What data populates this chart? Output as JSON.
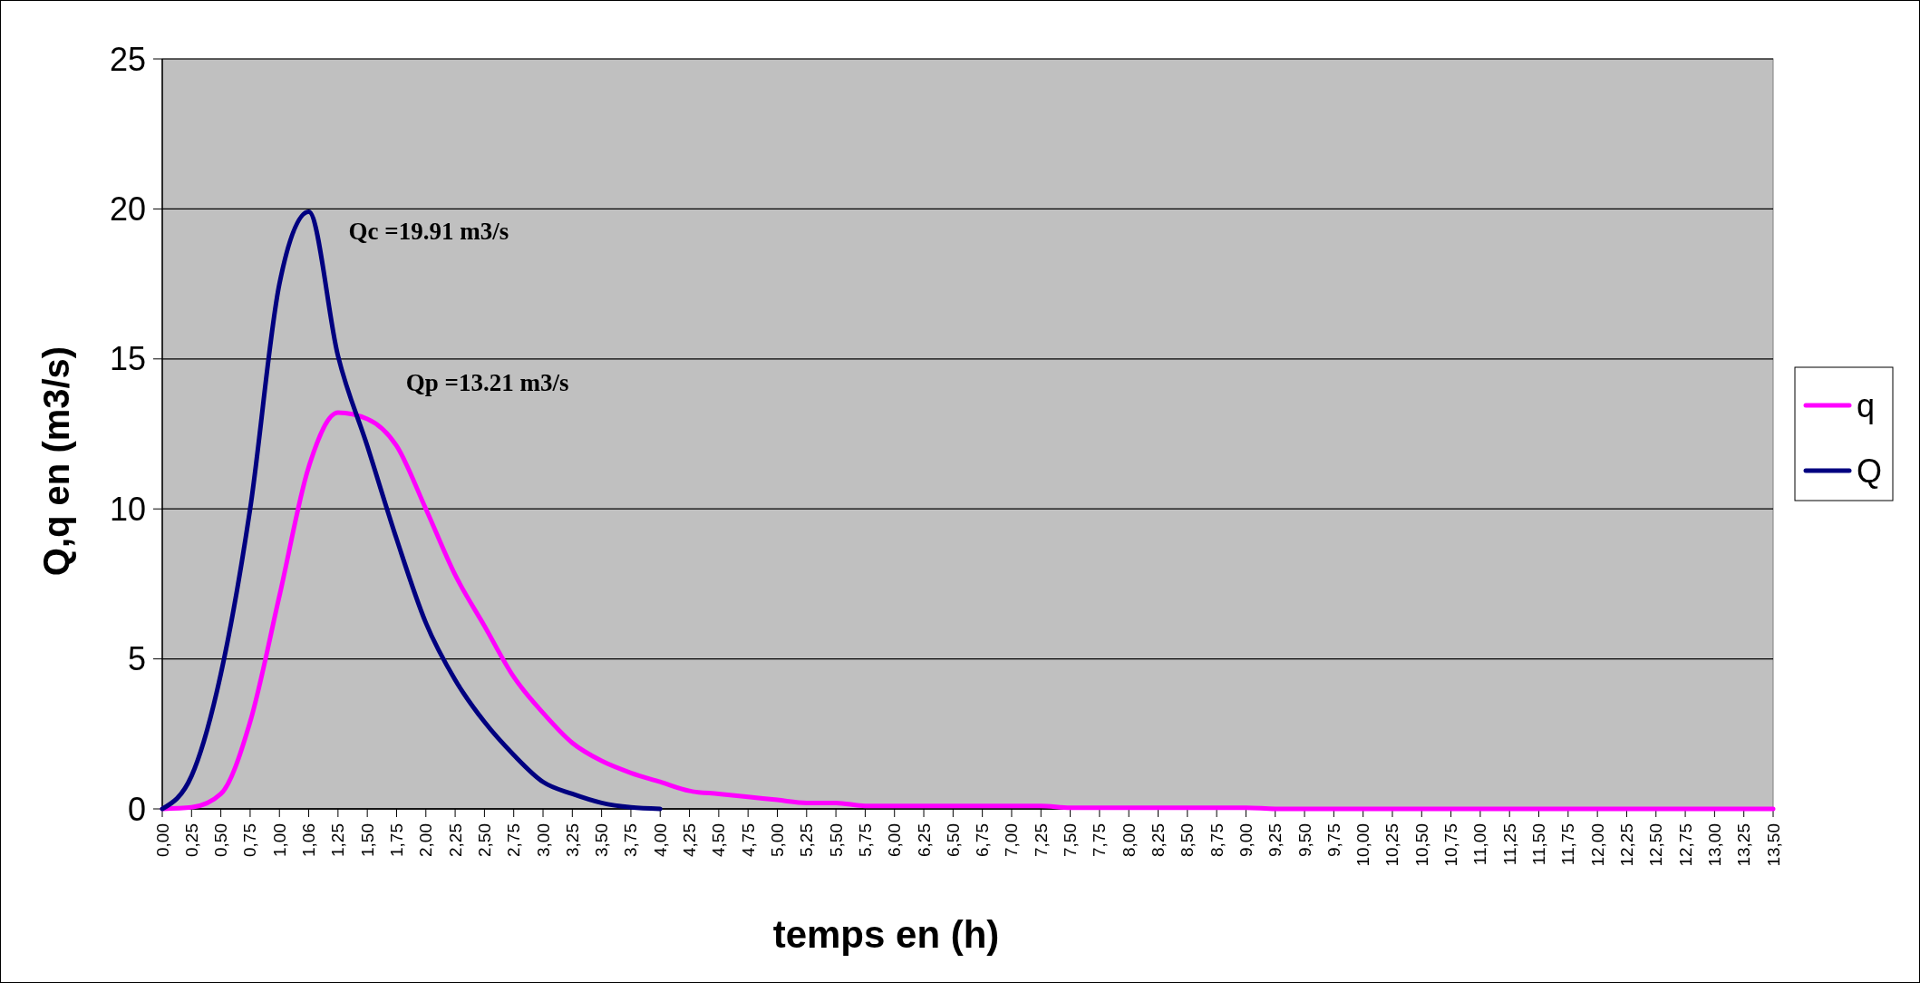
{
  "chart_data": {
    "type": "line",
    "xlabel": "temps en (h)",
    "ylabel": "Q,q en (m3/s)",
    "categories": [
      "0,00",
      "0,25",
      "0,50",
      "0,75",
      "1,00",
      "1,06",
      "1,25",
      "1,50",
      "1,75",
      "2,00",
      "2,25",
      "2,50",
      "2,75",
      "3,00",
      "3,25",
      "3,50",
      "3,75",
      "4,00",
      "4,25",
      "4,50",
      "4,75",
      "5,00",
      "5,25",
      "5,50",
      "5,75",
      "6,00",
      "6,25",
      "6,50",
      "6,75",
      "7,00",
      "7,25",
      "7,50",
      "7,75",
      "8,00",
      "8,25",
      "8,50",
      "8,75",
      "9,00",
      "9,25",
      "9,50",
      "9,75",
      "10,00",
      "10,25",
      "10,50",
      "10,75",
      "11,00",
      "11,25",
      "11,50",
      "11,75",
      "12,00",
      "12,25",
      "12,50",
      "12,75",
      "13,00",
      "13,25",
      "13,50"
    ],
    "series": [
      {
        "name": "q",
        "color": "#ff00ff",
        "values": [
          0,
          0.05,
          0.5,
          2.9,
          7.1,
          11.4,
          13.21,
          13.0,
          12.1,
          10.0,
          7.8,
          6.1,
          4.4,
          3.2,
          2.2,
          1.6,
          1.2,
          0.9,
          0.6,
          0.5,
          0.4,
          0.3,
          0.2,
          0.2,
          0.1,
          0.1,
          0.1,
          0.1,
          0.1,
          0.1,
          0.1,
          0.04,
          0.04,
          0.04,
          0.04,
          0.04,
          0.04,
          0.04,
          0,
          0,
          0,
          0,
          0,
          0,
          0,
          0,
          0,
          0,
          0,
          0,
          0,
          0,
          0,
          0,
          0,
          0
        ]
      },
      {
        "name": "Q",
        "color": "#000080",
        "values": [
          0,
          1.1,
          4.5,
          10.0,
          17.5,
          19.91,
          15.1,
          12.1,
          9.0,
          6.2,
          4.3,
          2.9,
          1.8,
          0.9,
          0.5,
          0.2,
          0.05,
          0,
          null,
          null,
          null,
          null,
          null,
          null,
          null,
          null,
          null,
          null,
          null,
          null,
          null,
          null,
          null,
          null,
          null,
          null,
          null,
          null,
          null,
          null,
          null,
          null,
          null,
          null,
          null,
          null,
          null,
          null,
          null,
          null,
          null,
          null,
          null,
          null,
          null,
          null
        ]
      }
    ],
    "ylim": [
      0,
      25
    ],
    "yticks": [
      0,
      5,
      10,
      15,
      20,
      25
    ],
    "grid": "y",
    "legend": "right",
    "annotations": [
      {
        "text": "Qc =19.91 m3/s",
        "x": "1,06",
        "y": 19.91
      },
      {
        "text": "Qp =13.21 m3/s",
        "x": "1,25",
        "y": 13.21
      }
    ]
  }
}
